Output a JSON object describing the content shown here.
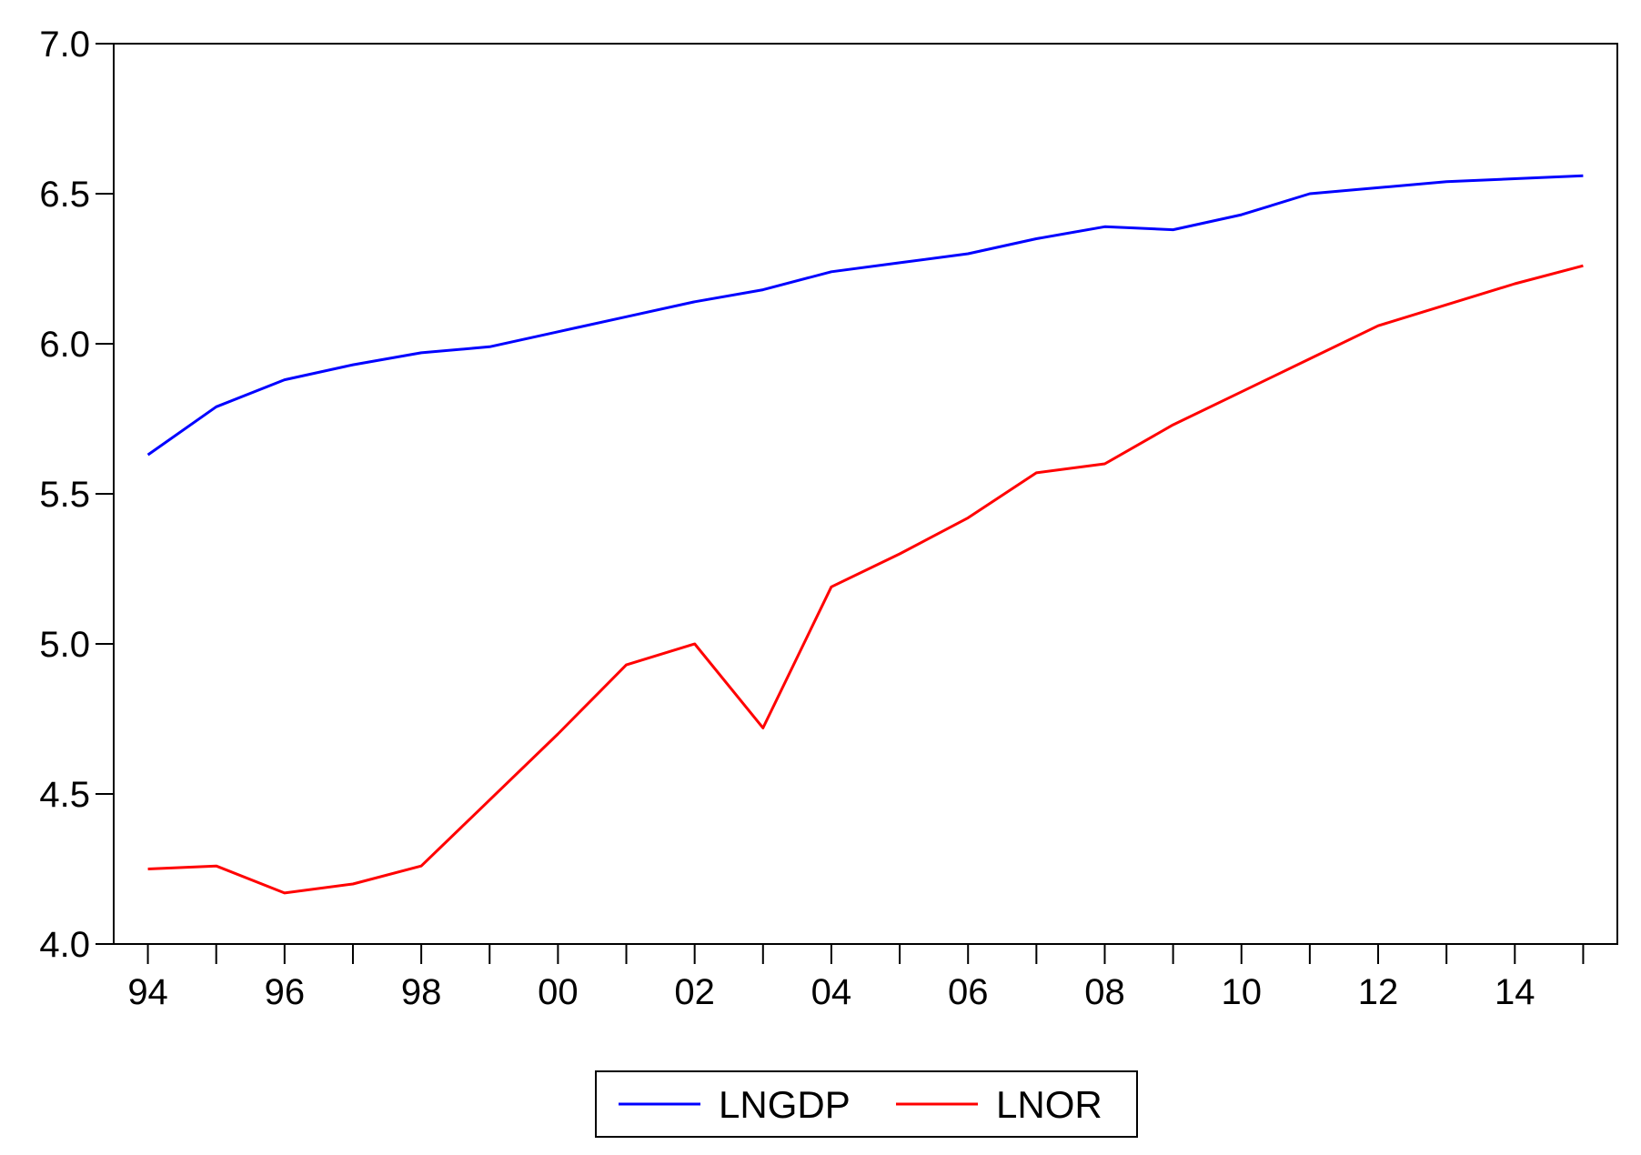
{
  "chart_data": {
    "type": "line",
    "title": "",
    "xlabel": "",
    "ylabel": "",
    "x": [
      1994,
      1995,
      1996,
      1997,
      1998,
      1999,
      2000,
      2001,
      2002,
      2003,
      2004,
      2005,
      2006,
      2007,
      2008,
      2009,
      2010,
      2011,
      2012,
      2013,
      2014,
      2015
    ],
    "xlim": [
      1993.5,
      2015.5
    ],
    "ylim": [
      4.0,
      7.0
    ],
    "y_ticks": [
      "4.0",
      "4.5",
      "5.0",
      "5.5",
      "6.0",
      "6.5",
      "7.0"
    ],
    "x_tick_labels": [
      "94",
      "96",
      "98",
      "00",
      "02",
      "04",
      "06",
      "08",
      "10",
      "12",
      "14"
    ],
    "grid": false,
    "legend_position": "bottom-center",
    "series": [
      {
        "name": "LNGDP",
        "color": "#0000ff",
        "values": [
          5.63,
          5.79,
          5.88,
          5.93,
          5.97,
          5.99,
          6.04,
          6.09,
          6.14,
          6.18,
          6.24,
          6.27,
          6.3,
          6.35,
          6.39,
          6.38,
          6.43,
          6.5,
          6.52,
          6.54,
          6.55,
          6.56
        ]
      },
      {
        "name": "LNOR",
        "color": "#ff0000",
        "values": [
          4.25,
          4.26,
          4.17,
          4.2,
          4.26,
          4.48,
          4.7,
          4.93,
          5.0,
          4.72,
          5.19,
          5.3,
          5.42,
          5.57,
          5.6,
          5.73,
          5.84,
          5.95,
          6.06,
          6.13,
          6.2,
          6.26
        ]
      }
    ]
  }
}
